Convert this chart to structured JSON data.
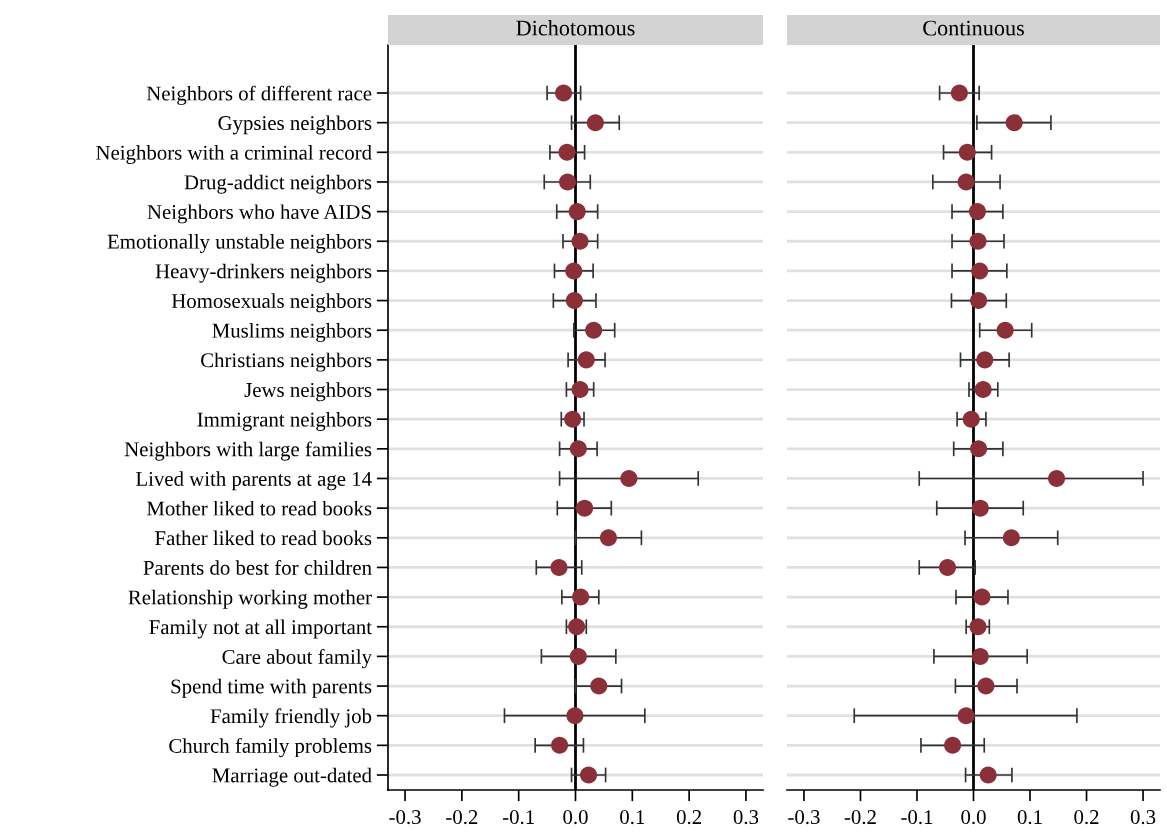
{
  "chart_data": [
    {
      "type": "scatter",
      "title": "Dichotomous",
      "orientation": "horizontal",
      "marker": "circle",
      "grid": "y",
      "color": "#8b3039",
      "categories": [
        "Neighbors of different race",
        "Gypsies neighbors",
        "Neighbors with a criminal record",
        "Drug-addict neighbors",
        "Neighbors who have AIDS",
        "Emotionally unstable neighbors",
        "Heavy-drinkers neighbors",
        "Homosexuals neighbors",
        "Muslims neighbors",
        "Christians neighbors",
        "Jews neighbors",
        "Immigrant neighbors",
        "Neighbors with large families",
        "Lived with parents at age 14",
        "Mother liked to read books",
        "Father liked to read books",
        "Parents do best for children",
        "Relationship working mother",
        "Family not at all important",
        "Care about family",
        "Spend time with parents",
        "Family friendly job",
        "Church family problems",
        "Marriage out-dated"
      ],
      "values": [
        -0.021,
        0.035,
        -0.015,
        -0.014,
        0.003,
        0.008,
        -0.003,
        -0.002,
        0.032,
        0.019,
        0.008,
        -0.005,
        0.005,
        0.094,
        0.016,
        0.058,
        -0.029,
        0.009,
        0.002,
        0.005,
        0.041,
        -0.001,
        -0.028,
        0.023
      ],
      "errors": [
        [
          -0.05,
          0.009
        ],
        [
          -0.007,
          0.077
        ],
        [
          -0.045,
          0.016
        ],
        [
          -0.055,
          0.026
        ],
        [
          -0.033,
          0.039
        ],
        [
          -0.022,
          0.039
        ],
        [
          -0.037,
          0.031
        ],
        [
          -0.039,
          0.036
        ],
        [
          -0.003,
          0.069
        ],
        [
          -0.013,
          0.052
        ],
        [
          -0.016,
          0.032
        ],
        [
          -0.025,
          0.015
        ],
        [
          -0.028,
          0.038
        ],
        [
          -0.028,
          0.216
        ],
        [
          -0.032,
          0.063
        ],
        [
          0.0,
          0.116
        ],
        [
          -0.069,
          0.011
        ],
        [
          -0.024,
          0.041
        ],
        [
          -0.016,
          0.019
        ],
        [
          -0.06,
          0.071
        ],
        [
          0.0,
          0.081
        ],
        [
          -0.125,
          0.122
        ],
        [
          -0.071,
          0.014
        ],
        [
          -0.007,
          0.053
        ]
      ],
      "xlim": [
        -0.33,
        0.33
      ],
      "xticks": [
        {
          "value": -0.3,
          "label": "-0.3"
        },
        {
          "value": -0.2,
          "label": "-0.2"
        },
        {
          "value": -0.1,
          "label": "-0.1"
        },
        {
          "value": 0.0,
          "label": "0.0"
        },
        {
          "value": 0.1,
          "label": "0.1"
        },
        {
          "value": 0.2,
          "label": "0.2"
        },
        {
          "value": 0.3,
          "label": "0.3"
        }
      ],
      "ref_lines": [
        {
          "axis": "x",
          "value": 0,
          "color": "#000000"
        }
      ]
    },
    {
      "type": "scatter",
      "title": "Continuous",
      "orientation": "horizontal",
      "marker": "circle",
      "grid": "y",
      "color": "#8b3039",
      "tick_labels": "x",
      "categories": [
        null,
        null,
        null,
        null,
        null,
        null,
        null,
        null,
        null,
        null,
        null,
        null,
        null,
        null,
        null,
        null,
        null,
        null,
        null,
        null,
        null,
        null,
        null,
        null
      ],
      "values": [
        -0.025,
        0.072,
        -0.011,
        -0.013,
        0.007,
        0.008,
        0.011,
        0.009,
        0.056,
        0.02,
        0.017,
        -0.004,
        0.009,
        0.147,
        0.012,
        0.067,
        -0.046,
        0.015,
        0.008,
        0.012,
        0.022,
        -0.013,
        -0.037,
        0.026
      ],
      "errors": [
        [
          -0.06,
          0.01
        ],
        [
          0.006,
          0.137
        ],
        [
          -0.053,
          0.032
        ],
        [
          -0.072,
          0.047
        ],
        [
          -0.038,
          0.052
        ],
        [
          -0.038,
          0.054
        ],
        [
          -0.038,
          0.059
        ],
        [
          -0.039,
          0.058
        ],
        [
          0.011,
          0.103
        ],
        [
          -0.023,
          0.063
        ],
        [
          -0.008,
          0.043
        ],
        [
          -0.029,
          0.022
        ],
        [
          -0.035,
          0.052
        ],
        [
          -0.096,
          0.3
        ],
        [
          -0.065,
          0.088
        ],
        [
          -0.015,
          0.149
        ],
        [
          -0.096,
          0.003
        ],
        [
          -0.031,
          0.061
        ],
        [
          -0.013,
          0.028
        ],
        [
          -0.07,
          0.095
        ],
        [
          -0.032,
          0.077
        ],
        [
          -0.211,
          0.183
        ],
        [
          -0.093,
          0.019
        ],
        [
          -0.014,
          0.068
        ]
      ],
      "xlim": [
        -0.33,
        0.33
      ],
      "xticks": [
        {
          "value": -0.3,
          "label": "-0.3"
        },
        {
          "value": -0.2,
          "label": "-0.2"
        },
        {
          "value": -0.1,
          "label": "-0.1"
        },
        {
          "value": 0.0,
          "label": "0.0"
        },
        {
          "value": 0.1,
          "label": "0.1"
        },
        {
          "value": 0.2,
          "label": "0.2"
        },
        {
          "value": 0.3,
          "label": "0.3"
        }
      ],
      "ref_lines": [
        {
          "axis": "x",
          "value": 0,
          "color": "#000000"
        }
      ]
    }
  ]
}
